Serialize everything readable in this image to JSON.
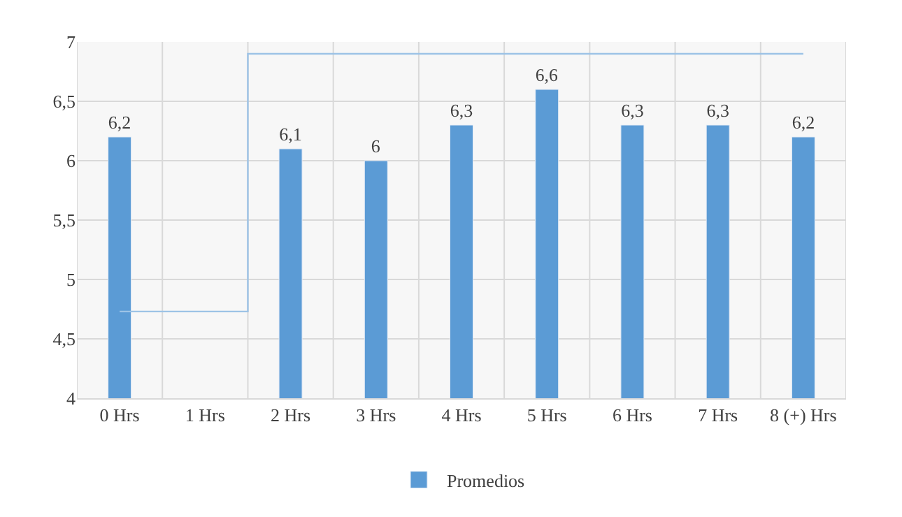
{
  "chart_data": {
    "type": "bar",
    "categories": [
      "0 Hrs",
      "1 Hrs",
      "2 Hrs",
      "3 Hrs",
      "4 Hrs",
      "5 Hrs",
      "6 Hrs",
      "7 Hrs",
      "8 (+) Hrs"
    ],
    "series": [
      {
        "name": "Promedios",
        "color": "#5b9bd5",
        "values": [
          6.2,
          null,
          6.1,
          6,
          6.3,
          6.6,
          6.3,
          6.3,
          6.2
        ],
        "value_labels": [
          "6,2",
          null,
          "6,1",
          "6",
          "6,3",
          "6,6",
          "6,3",
          "6,3",
          "6,2"
        ]
      },
      {
        "type": "step",
        "color": "#9dc3e6",
        "values": [
          4.73,
          4.73,
          6.9,
          6.9,
          6.9,
          6.9,
          6.9,
          6.9,
          6.9
        ]
      }
    ],
    "ylim": [
      4,
      7
    ],
    "yticks": [
      {
        "value": 4,
        "label": "4"
      },
      {
        "value": 4.5,
        "label": "4,5"
      },
      {
        "value": 5,
        "label": "5"
      },
      {
        "value": 5.5,
        "label": "5,5"
      },
      {
        "value": 6,
        "label": "6"
      },
      {
        "value": 6.5,
        "label": "6,5"
      },
      {
        "value": 7,
        "label": "7"
      }
    ],
    "grid": true,
    "legend": "bottom"
  }
}
